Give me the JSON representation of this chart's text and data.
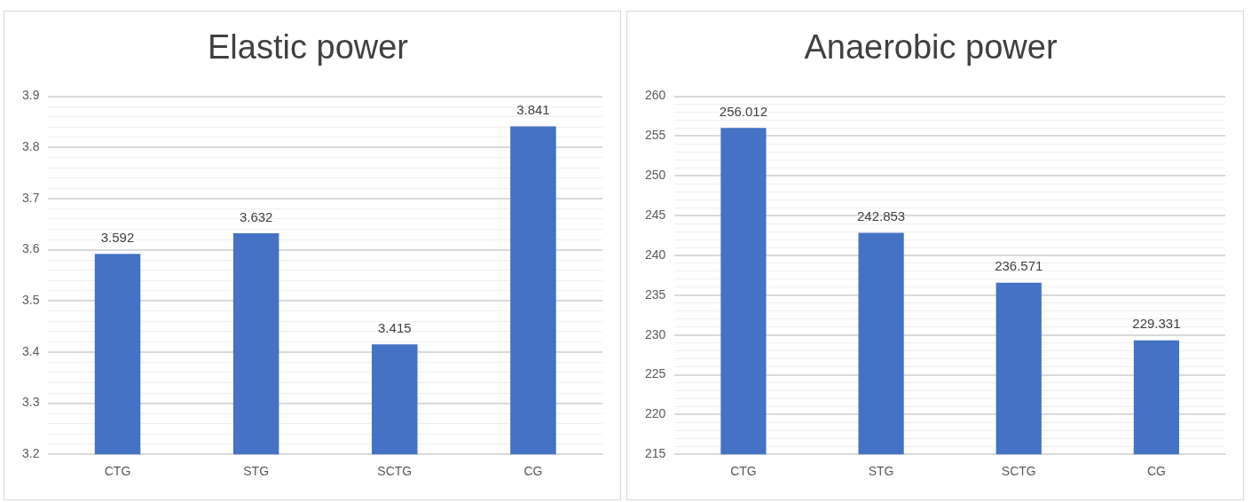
{
  "chart_data": [
    {
      "type": "bar",
      "title": "Elastic power",
      "categories": [
        "CTG",
        "STG",
        "SCTG",
        "CG"
      ],
      "values": [
        3.592,
        3.632,
        3.415,
        3.841
      ],
      "color": "#4472c4",
      "data_labels": true,
      "grid": "y",
      "legend": false,
      "ylim": [
        3.2,
        3.9
      ],
      "yticks": [
        3.2,
        {
          "value": 3.22,
          "label": null
        },
        {
          "value": 3.24,
          "label": null
        },
        {
          "value": 3.26,
          "label": null
        },
        {
          "value": 3.28,
          "label": null
        },
        3.3,
        {
          "value": 3.32,
          "label": null
        },
        {
          "value": 3.34,
          "label": null
        },
        {
          "value": 3.36,
          "label": null
        },
        {
          "value": 3.38,
          "label": null
        },
        3.4,
        {
          "value": 3.42,
          "label": null
        },
        {
          "value": 3.44,
          "label": null
        },
        {
          "value": 3.46,
          "label": null
        },
        {
          "value": 3.48,
          "label": null
        },
        3.5,
        {
          "value": 3.52,
          "label": null
        },
        {
          "value": 3.54,
          "label": null
        },
        {
          "value": 3.56,
          "label": null
        },
        {
          "value": 3.58,
          "label": null
        },
        3.6,
        {
          "value": 3.62,
          "label": null
        },
        {
          "value": 3.64,
          "label": null
        },
        {
          "value": 3.66,
          "label": null
        },
        {
          "value": 3.68,
          "label": null
        },
        3.7,
        {
          "value": 3.72,
          "label": null
        },
        {
          "value": 3.74,
          "label": null
        },
        {
          "value": 3.76,
          "label": null
        },
        {
          "value": 3.78,
          "label": null
        },
        3.8,
        {
          "value": 3.82,
          "label": null
        },
        {
          "value": 3.84,
          "label": null
        },
        {
          "value": 3.86,
          "label": null
        },
        {
          "value": 3.88,
          "label": null
        },
        3.9
      ]
    },
    {
      "type": "bar",
      "title": "Anaerobic power",
      "categories": [
        "CTG",
        "STG",
        "SCTG",
        "CG"
      ],
      "values": [
        256.012,
        242.853,
        236.571,
        229.331
      ],
      "color": "#4472c4",
      "data_labels": true,
      "grid": "y",
      "legend": false,
      "ylim": [
        215,
        260
      ],
      "yticks": [
        215,
        {
          "value": 216,
          "label": null
        },
        {
          "value": 217,
          "label": null
        },
        {
          "value": 218,
          "label": null
        },
        {
          "value": 219,
          "label": null
        },
        220,
        {
          "value": 221,
          "label": null
        },
        {
          "value": 222,
          "label": null
        },
        {
          "value": 223,
          "label": null
        },
        {
          "value": 224,
          "label": null
        },
        225,
        {
          "value": 226,
          "label": null
        },
        {
          "value": 227,
          "label": null
        },
        {
          "value": 228,
          "label": null
        },
        {
          "value": 229,
          "label": null
        },
        230,
        {
          "value": 231,
          "label": null
        },
        {
          "value": 232,
          "label": null
        },
        {
          "value": 233,
          "label": null
        },
        {
          "value": 234,
          "label": null
        },
        235,
        {
          "value": 236,
          "label": null
        },
        {
          "value": 237,
          "label": null
        },
        {
          "value": 238,
          "label": null
        },
        {
          "value": 239,
          "label": null
        },
        240,
        {
          "value": 241,
          "label": null
        },
        {
          "value": 242,
          "label": null
        },
        {
          "value": 243,
          "label": null
        },
        {
          "value": 244,
          "label": null
        },
        245,
        {
          "value": 246,
          "label": null
        },
        {
          "value": 247,
          "label": null
        },
        {
          "value": 248,
          "label": null
        },
        {
          "value": 249,
          "label": null
        },
        250,
        {
          "value": 251,
          "label": null
        },
        {
          "value": 252,
          "label": null
        },
        {
          "value": 253,
          "label": null
        },
        {
          "value": 254,
          "label": null
        },
        255,
        {
          "value": 256,
          "label": null
        },
        {
          "value": 257,
          "label": null
        },
        {
          "value": 258,
          "label": null
        },
        {
          "value": 259,
          "label": null
        },
        260
      ]
    }
  ]
}
